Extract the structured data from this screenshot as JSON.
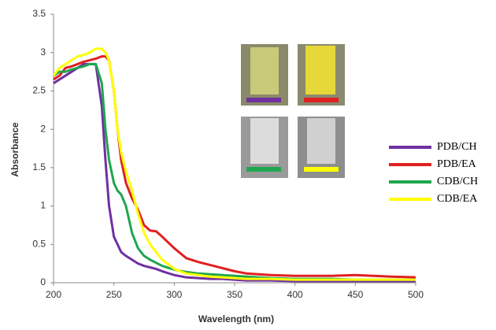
{
  "chart_data": {
    "type": "line",
    "x_label": "Wavelength (nm)",
    "y_label": "Absorbance",
    "x": [
      200,
      205,
      210,
      215,
      220,
      225,
      230,
      235,
      240,
      243,
      246,
      250,
      253,
      256,
      260,
      265,
      270,
      275,
      280,
      285,
      290,
      300,
      310,
      320,
      330,
      340,
      350,
      360,
      380,
      400,
      430,
      450,
      480,
      500
    ],
    "series": [
      {
        "name": "PDB/CH",
        "color": "#7030a0",
        "values": [
          2.6,
          2.65,
          2.7,
          2.75,
          2.8,
          2.85,
          2.85,
          2.85,
          2.3,
          1.6,
          1.0,
          0.6,
          0.5,
          0.4,
          0.35,
          0.3,
          0.25,
          0.22,
          0.2,
          0.18,
          0.15,
          0.1,
          0.07,
          0.06,
          0.05,
          0.05,
          0.04,
          0.03,
          0.03,
          0.02,
          0.02,
          0.02,
          0.02,
          0.02
        ]
      },
      {
        "name": "PDB/EA",
        "color": "#e02020",
        "values": [
          2.65,
          2.7,
          2.8,
          2.82,
          2.85,
          2.88,
          2.9,
          2.92,
          2.95,
          2.95,
          2.9,
          2.5,
          2.0,
          1.6,
          1.3,
          1.1,
          0.95,
          0.75,
          0.68,
          0.67,
          0.6,
          0.45,
          0.32,
          0.27,
          0.23,
          0.19,
          0.15,
          0.12,
          0.1,
          0.09,
          0.09,
          0.1,
          0.08,
          0.07
        ]
      },
      {
        "name": "CDB/CH",
        "color": "#1fa64f",
        "values": [
          2.7,
          2.75,
          2.75,
          2.78,
          2.8,
          2.82,
          2.85,
          2.85,
          2.6,
          2.0,
          1.6,
          1.3,
          1.2,
          1.15,
          1.0,
          0.65,
          0.45,
          0.35,
          0.3,
          0.26,
          0.22,
          0.17,
          0.14,
          0.12,
          0.11,
          0.1,
          0.09,
          0.08,
          0.06,
          0.05,
          0.05,
          0.04,
          0.04,
          0.04
        ]
      },
      {
        "name": "CDB/EA",
        "color": "#ffff00",
        "values": [
          2.7,
          2.8,
          2.85,
          2.9,
          2.95,
          2.97,
          3.0,
          3.05,
          3.05,
          3.0,
          2.9,
          2.5,
          2.0,
          1.7,
          1.45,
          1.2,
          0.9,
          0.65,
          0.5,
          0.4,
          0.3,
          0.18,
          0.12,
          0.1,
          0.08,
          0.07,
          0.06,
          0.05,
          0.05,
          0.04,
          0.04,
          0.04,
          0.04,
          0.04
        ]
      }
    ],
    "xlim": [
      200,
      500
    ],
    "xticks": [
      200,
      250,
      300,
      350,
      400,
      450,
      500
    ],
    "ylim": [
      0,
      3.5
    ],
    "yticks": [
      0,
      0.5,
      1,
      1.5,
      2,
      2.5,
      3,
      3.5
    ],
    "grid": false,
    "legend": "right"
  }
}
